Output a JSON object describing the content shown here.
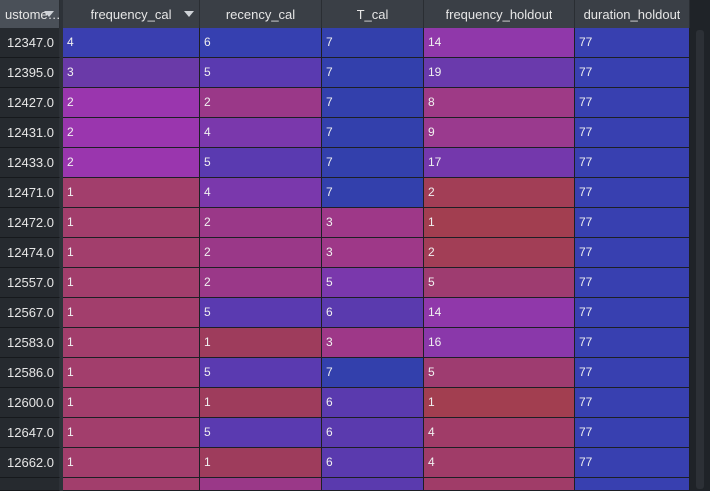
{
  "columns": [
    {
      "label": "ustome…",
      "sort": true
    },
    {
      "label": "frequency_cal",
      "sort": true
    },
    {
      "label": "recency_cal",
      "sort": false
    },
    {
      "label": "T_cal",
      "sort": false
    },
    {
      "label": "frequency_holdout",
      "sort": false
    },
    {
      "label": "duration_holdout",
      "sort": false
    }
  ],
  "rows": [
    {
      "id": "12347.0",
      "v": [
        "4",
        "6",
        "7",
        "14",
        "77"
      ]
    },
    {
      "id": "12395.0",
      "v": [
        "3",
        "5",
        "7",
        "19",
        "77"
      ]
    },
    {
      "id": "12427.0",
      "v": [
        "2",
        "2",
        "7",
        "8",
        "77"
      ]
    },
    {
      "id": "12431.0",
      "v": [
        "2",
        "4",
        "7",
        "9",
        "77"
      ]
    },
    {
      "id": "12433.0",
      "v": [
        "2",
        "5",
        "7",
        "17",
        "77"
      ]
    },
    {
      "id": "12471.0",
      "v": [
        "1",
        "4",
        "7",
        "2",
        "77"
      ]
    },
    {
      "id": "12472.0",
      "v": [
        "1",
        "2",
        "3",
        "1",
        "77"
      ]
    },
    {
      "id": "12474.0",
      "v": [
        "1",
        "2",
        "3",
        "2",
        "77"
      ]
    },
    {
      "id": "12557.0",
      "v": [
        "1",
        "2",
        "5",
        "5",
        "77"
      ]
    },
    {
      "id": "12567.0",
      "v": [
        "1",
        "5",
        "6",
        "14",
        "77"
      ]
    },
    {
      "id": "12583.0",
      "v": [
        "1",
        "1",
        "3",
        "16",
        "77"
      ]
    },
    {
      "id": "12586.0",
      "v": [
        "1",
        "5",
        "7",
        "5",
        "77"
      ]
    },
    {
      "id": "12600.0",
      "v": [
        "1",
        "1",
        "6",
        "1",
        "77"
      ]
    },
    {
      "id": "12647.0",
      "v": [
        "1",
        "5",
        "6",
        "4",
        "77"
      ]
    },
    {
      "id": "12662.0",
      "v": [
        "1",
        "1",
        "6",
        "4",
        "77"
      ]
    }
  ],
  "colors": {
    "frequency_cal": {
      "4": "#3a3fb0",
      "3": "#6a3aa8",
      "2": "#9a36ae",
      "1": "#a23e6c"
    },
    "recency_cal": {
      "6": "#3640b0",
      "5": "#5a3ab0",
      "4": "#7a38ac",
      "2": "#9a3888",
      "1": "#9e3c5c"
    },
    "T_cal": {
      "7": "#3340ac",
      "6": "#5a3aae",
      "5": "#7a38ac",
      "3": "#9e3888"
    },
    "frequency_holdout": {
      "19": "#6a3aac",
      "17": "#7438ac",
      "16": "#8a38aa",
      "14": "#9038aa",
      "9": "#9a3a8e",
      "8": "#9e3a86",
      "5": "#9e3c70",
      "4": "#a03c68",
      "2": "#a23e56",
      "1": "#a23e50"
    },
    "duration_holdout": {
      "77": "#3840b0"
    }
  }
}
